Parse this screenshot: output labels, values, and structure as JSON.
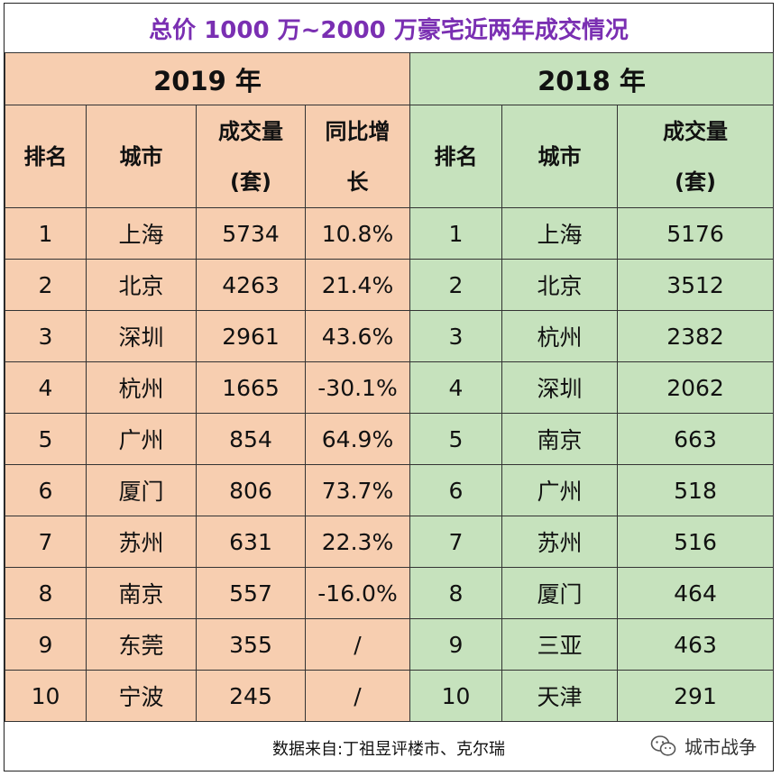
{
  "title": "总价 1000 万~2000 万豪宅近两年成交情况",
  "year_2019": "2019 年",
  "year_2018": "2018 年",
  "headers_2019": {
    "rank": "排名",
    "city": "城市",
    "volume_line1": "成交量",
    "volume_line2": "(套)",
    "growth_line1": "同比增",
    "growth_line2": "长"
  },
  "headers_2018": {
    "rank": "排名",
    "city": "城市",
    "volume_line1": "成交量",
    "volume_line2": "(套)"
  },
  "rows": [
    {
      "r19": "1",
      "c19": "上海",
      "v19": "5734",
      "g19": "10.8%",
      "r18": "1",
      "c18": "上海",
      "v18": "5176"
    },
    {
      "r19": "2",
      "c19": "北京",
      "v19": "4263",
      "g19": "21.4%",
      "r18": "2",
      "c18": "北京",
      "v18": "3512"
    },
    {
      "r19": "3",
      "c19": "深圳",
      "v19": "2961",
      "g19": "43.6%",
      "r18": "3",
      "c18": "杭州",
      "v18": "2382"
    },
    {
      "r19": "4",
      "c19": "杭州",
      "v19": "1665",
      "g19": "-30.1%",
      "r18": "4",
      "c18": "深圳",
      "v18": "2062"
    },
    {
      "r19": "5",
      "c19": "广州",
      "v19": "854",
      "g19": "64.9%",
      "r18": "5",
      "c18": "南京",
      "v18": "663"
    },
    {
      "r19": "6",
      "c19": "厦门",
      "v19": "806",
      "g19": "73.7%",
      "r18": "6",
      "c18": "广州",
      "v18": "518"
    },
    {
      "r19": "7",
      "c19": "苏州",
      "v19": "631",
      "g19": "22.3%",
      "r18": "7",
      "c18": "苏州",
      "v18": "516"
    },
    {
      "r19": "8",
      "c19": "南京",
      "v19": "557",
      "g19": "-16.0%",
      "r18": "8",
      "c18": "厦门",
      "v18": "464"
    },
    {
      "r19": "9",
      "c19": "东莞",
      "v19": "355",
      "g19": "/",
      "r18": "9",
      "c18": "三亚",
      "v18": "463"
    },
    {
      "r19": "10",
      "c19": "宁波",
      "v19": "245",
      "g19": "/",
      "r18": "10",
      "c18": "天津",
      "v18": "291"
    }
  ],
  "source": "数据来自:丁祖昱评楼市、克尔瑞",
  "watermark": "城市战争",
  "watermark_icon": "wechat-icon",
  "colors": {
    "title": "#7a2fb2",
    "orange": "#f7ceb0",
    "green": "#c6e2bd"
  }
}
